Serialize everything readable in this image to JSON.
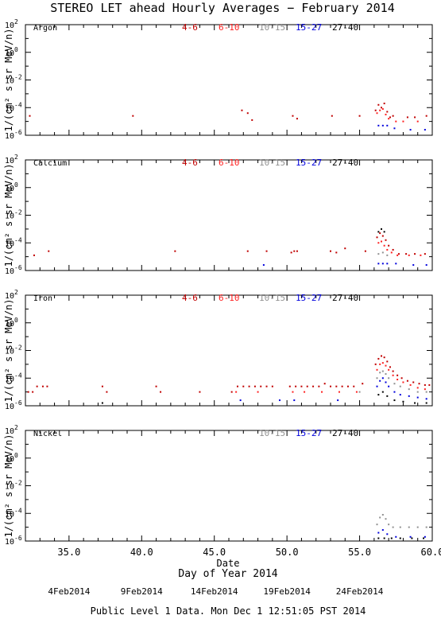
{
  "title": "STEREO LET ahead Hourly Averages − February 2014",
  "ylabel": "1/(cm² s sr MeV/n)",
  "xlabel": "Day of Year 2014",
  "date_axis_label": "Date",
  "footer": "Public Level 1 Data. Mon Dec  1 12:51:05 PST 2014",
  "energy_colors": {
    "4-6": "#c00000",
    "6-10": "#ff2020",
    "10-15": "#909090",
    "15-27": "#0000dd",
    "27-40": "#000000"
  },
  "chart_data": [
    {
      "type": "scatter",
      "panel": "Argon",
      "legend": [
        "4-6",
        "6-10",
        "10-15",
        "15-27",
        "27-40"
      ],
      "xlim": [
        32,
        60
      ],
      "ylim_log10": [
        -6,
        2
      ],
      "yticks": [
        "10^2",
        "10^0",
        "10^-2",
        "10^-4",
        "10^-6"
      ],
      "xticks": [
        "35.0",
        "40.0",
        "45.0",
        "50.0",
        "55.0",
        "60.0"
      ],
      "series": [
        {
          "name": "4-6",
          "points": [
            [
              32.3,
              -4.6
            ],
            [
              39.4,
              -4.6
            ],
            [
              46.9,
              -4.2
            ],
            [
              47.3,
              -4.4
            ],
            [
              47.6,
              -4.9
            ],
            [
              50.4,
              -4.6
            ],
            [
              50.7,
              -4.8
            ],
            [
              53.1,
              -4.6
            ],
            [
              55.0,
              -4.6
            ],
            [
              56.1,
              -4.2
            ],
            [
              56.3,
              -3.8
            ],
            [
              56.5,
              -4.0
            ],
            [
              56.7,
              -3.7
            ],
            [
              56.9,
              -4.3
            ],
            [
              57.1,
              -4.7
            ],
            [
              57.3,
              -4.6
            ],
            [
              58.3,
              -4.7
            ],
            [
              58.8,
              -4.7
            ],
            [
              59.6,
              -4.6
            ]
          ]
        },
        {
          "name": "6-10",
          "points": [
            [
              56.2,
              -4.4
            ],
            [
              56.4,
              -4.2
            ],
            [
              56.6,
              -4.1
            ],
            [
              56.8,
              -4.5
            ],
            [
              57.0,
              -4.8
            ],
            [
              57.5,
              -5.0
            ],
            [
              58.0,
              -5.0
            ],
            [
              59.0,
              -5.0
            ]
          ]
        },
        {
          "name": "15-27",
          "points": [
            [
              56.3,
              -5.3
            ],
            [
              56.6,
              -5.3
            ],
            [
              56.9,
              -5.3
            ],
            [
              57.4,
              -5.5
            ],
            [
              58.5,
              -5.6
            ],
            [
              59.5,
              -5.6
            ]
          ]
        }
      ]
    },
    {
      "type": "scatter",
      "panel": "Calcium",
      "legend": [
        "4-6",
        "6-10",
        "10-15",
        "15-27",
        "27-40"
      ],
      "xlim": [
        32,
        60
      ],
      "ylim_log10": [
        -6,
        2
      ],
      "yticks": [
        "10^2",
        "10^0",
        "10^-2",
        "10^-4",
        "10^-6"
      ],
      "xticks": [
        "35.0",
        "40.0",
        "45.0",
        "50.0",
        "55.0",
        "60.0"
      ],
      "series": [
        {
          "name": "4-6",
          "points": [
            [
              32.6,
              -4.9
            ],
            [
              33.6,
              -4.6
            ],
            [
              42.3,
              -4.6
            ],
            [
              47.3,
              -4.6
            ],
            [
              48.6,
              -4.6
            ],
            [
              50.3,
              -4.7
            ],
            [
              50.5,
              -4.6
            ],
            [
              50.7,
              -4.6
            ],
            [
              53.0,
              -4.6
            ],
            [
              53.4,
              -4.7
            ],
            [
              54.0,
              -4.4
            ],
            [
              55.4,
              -4.6
            ],
            [
              56.2,
              -3.6
            ],
            [
              56.4,
              -3.3
            ],
            [
              56.6,
              -3.5
            ],
            [
              56.8,
              -3.8
            ],
            [
              57.0,
              -4.2
            ],
            [
              57.3,
              -4.5
            ],
            [
              57.7,
              -4.8
            ],
            [
              58.2,
              -4.8
            ],
            [
              58.8,
              -4.8
            ],
            [
              59.5,
              -4.8
            ]
          ]
        },
        {
          "name": "6-10",
          "points": [
            [
              56.3,
              -4.0
            ],
            [
              56.5,
              -3.9
            ],
            [
              56.7,
              -4.2
            ],
            [
              56.9,
              -4.5
            ],
            [
              57.2,
              -4.7
            ],
            [
              57.6,
              -4.9
            ],
            [
              58.4,
              -4.9
            ],
            [
              59.2,
              -4.9
            ]
          ]
        },
        {
          "name": "10-15",
          "points": [
            [
              56.3,
              -4.8
            ],
            [
              56.6,
              -4.7
            ],
            [
              56.9,
              -4.9
            ]
          ]
        },
        {
          "name": "15-27",
          "points": [
            [
              48.4,
              -5.6
            ],
            [
              56.3,
              -5.5
            ],
            [
              56.6,
              -5.5
            ],
            [
              56.9,
              -5.5
            ],
            [
              57.5,
              -5.5
            ],
            [
              58.7,
              -5.6
            ],
            [
              59.6,
              -5.6
            ]
          ]
        },
        {
          "name": "27-40",
          "points": [
            [
              56.3,
              -3.2
            ],
            [
              56.5,
              -3.0
            ],
            [
              56.7,
              -3.2
            ]
          ]
        }
      ]
    },
    {
      "type": "scatter",
      "panel": "Iron",
      "legend": [
        "4-6",
        "6-10",
        "10-15",
        "15-27",
        "27-40"
      ],
      "xlim": [
        32,
        60
      ],
      "ylim_log10": [
        -6,
        2
      ],
      "yticks": [
        "10^2",
        "10^0",
        "10^-2",
        "10^-4",
        "10^-6"
      ],
      "xticks": [
        "35.0",
        "40.0",
        "45.0",
        "50.0",
        "55.0",
        "60.0"
      ],
      "series": [
        {
          "name": "4-6",
          "points": [
            [
              32.2,
              -5.0
            ],
            [
              32.5,
              -5.0
            ],
            [
              32.8,
              -4.6
            ],
            [
              33.2,
              -4.6
            ],
            [
              33.5,
              -4.6
            ],
            [
              37.3,
              -4.6
            ],
            [
              37.6,
              -5.0
            ],
            [
              41.0,
              -4.6
            ],
            [
              41.3,
              -5.0
            ],
            [
              44.0,
              -5.0
            ],
            [
              46.2,
              -5.0
            ],
            [
              46.6,
              -4.6
            ],
            [
              47.0,
              -4.6
            ],
            [
              47.4,
              -4.6
            ],
            [
              47.8,
              -4.6
            ],
            [
              48.2,
              -4.6
            ],
            [
              48.6,
              -4.6
            ],
            [
              49.0,
              -4.6
            ],
            [
              50.2,
              -4.6
            ],
            [
              50.6,
              -4.6
            ],
            [
              51.0,
              -4.6
            ],
            [
              51.4,
              -4.6
            ],
            [
              51.8,
              -4.6
            ],
            [
              52.2,
              -4.6
            ],
            [
              52.6,
              -4.4
            ],
            [
              53.0,
              -4.6
            ],
            [
              53.4,
              -4.6
            ],
            [
              53.8,
              -4.6
            ],
            [
              54.2,
              -4.6
            ],
            [
              54.6,
              -4.6
            ],
            [
              55.2,
              -4.4
            ],
            [
              56.1,
              -3.0
            ],
            [
              56.3,
              -2.6
            ],
            [
              56.5,
              -2.4
            ],
            [
              56.7,
              -2.5
            ],
            [
              56.9,
              -2.8
            ],
            [
              57.1,
              -3.2
            ],
            [
              57.3,
              -3.5
            ],
            [
              57.6,
              -3.8
            ],
            [
              57.9,
              -4.0
            ],
            [
              58.3,
              -4.2
            ],
            [
              58.7,
              -4.3
            ],
            [
              59.1,
              -4.4
            ],
            [
              59.5,
              -4.5
            ],
            [
              59.8,
              -4.5
            ]
          ]
        },
        {
          "name": "6-10",
          "points": [
            [
              46.5,
              -5.0
            ],
            [
              48.0,
              -5.0
            ],
            [
              50.4,
              -5.0
            ],
            [
              51.2,
              -5.0
            ],
            [
              52.4,
              -5.0
            ],
            [
              53.6,
              -5.0
            ],
            [
              54.8,
              -5.0
            ],
            [
              56.2,
              -3.4
            ],
            [
              56.4,
              -3.0
            ],
            [
              56.6,
              -2.9
            ],
            [
              56.8,
              -3.1
            ],
            [
              57.0,
              -3.4
            ],
            [
              57.3,
              -3.8
            ],
            [
              57.6,
              -4.1
            ],
            [
              58.0,
              -4.3
            ],
            [
              58.5,
              -4.5
            ],
            [
              59.0,
              -4.7
            ],
            [
              59.5,
              -4.8
            ]
          ]
        },
        {
          "name": "10-15",
          "points": [
            [
              55.0,
              -5.0
            ],
            [
              56.2,
              -4.0
            ],
            [
              56.4,
              -3.6
            ],
            [
              56.6,
              -3.5
            ],
            [
              56.8,
              -3.7
            ],
            [
              57.0,
              -4.0
            ],
            [
              57.4,
              -4.4
            ],
            [
              57.8,
              -4.6
            ],
            [
              58.4,
              -4.8
            ],
            [
              59.0,
              -5.0
            ],
            [
              59.6,
              -5.0
            ]
          ]
        },
        {
          "name": "15-27",
          "points": [
            [
              46.8,
              -5.6
            ],
            [
              49.5,
              -5.6
            ],
            [
              50.5,
              -5.6
            ],
            [
              53.5,
              -5.6
            ],
            [
              56.2,
              -4.6
            ],
            [
              56.4,
              -4.2
            ],
            [
              56.6,
              -4.0
            ],
            [
              56.8,
              -4.3
            ],
            [
              57.0,
              -4.6
            ],
            [
              57.4,
              -5.0
            ],
            [
              57.8,
              -5.2
            ],
            [
              58.4,
              -5.3
            ],
            [
              59.0,
              -5.4
            ],
            [
              59.6,
              -5.5
            ]
          ]
        },
        {
          "name": "27-40",
          "points": [
            [
              37.3,
              -5.8
            ],
            [
              56.3,
              -5.2
            ],
            [
              56.6,
              -5.0
            ],
            [
              56.9,
              -5.3
            ],
            [
              57.4,
              -5.6
            ],
            [
              58.0,
              -5.7
            ],
            [
              58.8,
              -5.8
            ],
            [
              59.6,
              -5.8
            ]
          ]
        }
      ]
    },
    {
      "type": "scatter",
      "panel": "Nickel",
      "legend": [
        "10-15",
        "15-27",
        "27-40"
      ],
      "xlim": [
        32,
        60
      ],
      "ylim_log10": [
        -6,
        2
      ],
      "yticks": [
        "10^2",
        "10^0",
        "10^-2",
        "10^-4",
        "10^-6"
      ],
      "xticks": [
        "35.0",
        "40.0",
        "45.0",
        "50.0",
        "55.0",
        "60.0"
      ],
      "series": [
        {
          "name": "10-15",
          "points": [
            [
              56.2,
              -4.8
            ],
            [
              56.4,
              -4.3
            ],
            [
              56.6,
              -4.1
            ],
            [
              56.8,
              -4.4
            ],
            [
              57.0,
              -4.8
            ],
            [
              57.3,
              -5.0
            ],
            [
              57.8,
              -5.0
            ],
            [
              58.4,
              -5.0
            ],
            [
              59.0,
              -5.0
            ],
            [
              59.6,
              -5.0
            ]
          ]
        },
        {
          "name": "15-27",
          "points": [
            [
              56.3,
              -5.4
            ],
            [
              56.6,
              -5.2
            ],
            [
              56.9,
              -5.5
            ],
            [
              57.5,
              -5.7
            ],
            [
              58.5,
              -5.7
            ],
            [
              59.5,
              -5.7
            ]
          ]
        },
        {
          "name": "27-40",
          "points": [
            [
              56.3,
              -5.8
            ],
            [
              56.7,
              -5.8
            ],
            [
              57.2,
              -5.8
            ],
            [
              57.8,
              -5.8
            ],
            [
              58.6,
              -5.8
            ],
            [
              59.4,
              -5.8
            ]
          ]
        }
      ]
    }
  ],
  "date_ticks": [
    {
      "label": "4Feb2014",
      "doy": 35
    },
    {
      "label": "9Feb2014",
      "doy": 40
    },
    {
      "label": "14Feb2014",
      "doy": 45
    },
    {
      "label": "19Feb2014",
      "doy": 50
    },
    {
      "label": "24Feb2014",
      "doy": 55
    }
  ]
}
